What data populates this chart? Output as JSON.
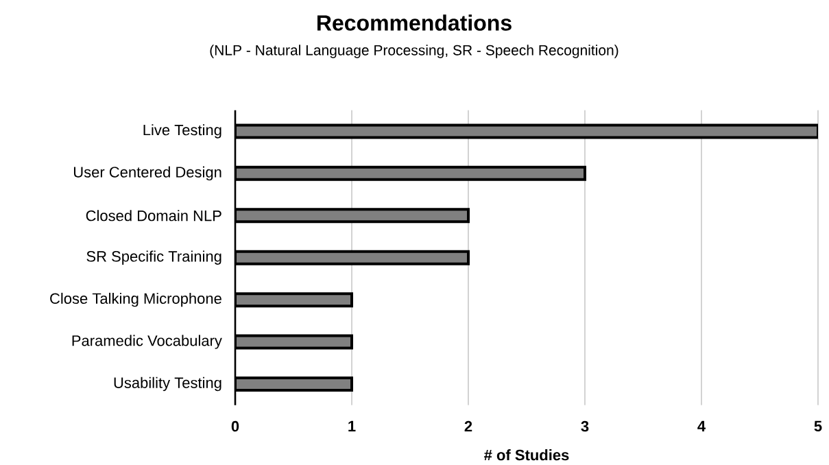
{
  "chart_data": {
    "type": "bar",
    "orientation": "horizontal",
    "title": "Recommendations",
    "subtitle": "(NLP - Natural Language Processing, SR - Speech Recognition)",
    "xlabel": "# of Studies",
    "categories": [
      "Live Testing",
      "User Centered Design",
      "Closed Domain NLP",
      "SR Specific Training",
      "Close Talking Microphone",
      "Paramedic Vocabulary",
      "Usability Testing"
    ],
    "values": [
      5,
      3,
      2,
      2,
      1,
      1,
      1
    ],
    "color": "#808080",
    "xlim": [
      0,
      5
    ],
    "xticks": [
      0,
      1,
      2,
      3,
      4,
      5
    ],
    "grid": "x"
  }
}
